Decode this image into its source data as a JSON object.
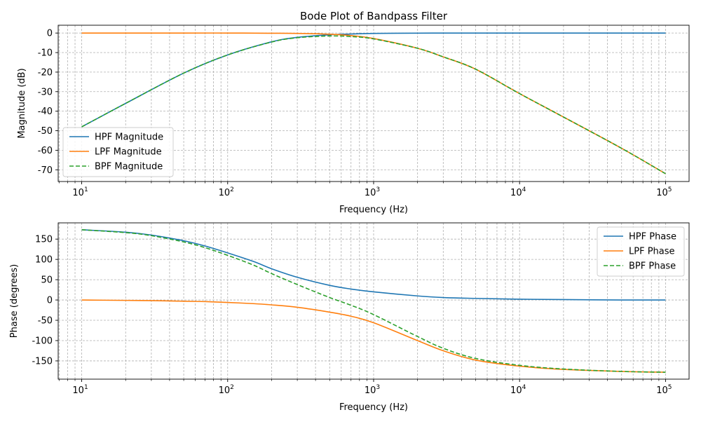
{
  "chart_data": [
    {
      "type": "line",
      "title": "Bode Plot of Bandpass Filter",
      "xlabel": "Frequency (Hz)",
      "ylabel": "Magnitude (dB)",
      "xscale": "log",
      "xlim": [
        6.9,
        145000
      ],
      "ylim": [
        -76,
        4
      ],
      "yticks": [
        0,
        -10,
        -20,
        -30,
        -40,
        -50,
        -60,
        -70
      ],
      "xticks": [
        10,
        100,
        1000,
        10000,
        100000
      ],
      "xtick_labels": [
        {
          "base": "10",
          "exp": "1"
        },
        {
          "base": "10",
          "exp": "2"
        },
        {
          "base": "10",
          "exp": "3"
        },
        {
          "base": "10",
          "exp": "4"
        },
        {
          "base": "10",
          "exp": "5"
        }
      ],
      "grid": true,
      "legend": "lower-left",
      "x": [
        10,
        20,
        50,
        100,
        200,
        300,
        500,
        700,
        1000,
        2000,
        3000,
        5000,
        10000,
        20000,
        50000,
        100000
      ],
      "series": [
        {
          "name": "HPF Magnitude",
          "color": "#1f77b4",
          "dash": "solid",
          "values": [
            -48,
            -36,
            -20.5,
            -11.2,
            -4.5,
            -2.2,
            -0.9,
            -0.5,
            -0.2,
            -0.05,
            0,
            0,
            0,
            0,
            0,
            0
          ]
        },
        {
          "name": "LPF Magnitude",
          "color": "#ff7f0e",
          "dash": "solid",
          "values": [
            0,
            0,
            0,
            0,
            -0.1,
            -0.2,
            -0.6,
            -1.3,
            -2.8,
            -7.8,
            -12.2,
            -18.5,
            -31,
            -43,
            -59,
            -72
          ]
        },
        {
          "name": "BPF Magnitude",
          "color": "#2ca02c",
          "dash": "dashed",
          "values": [
            -48,
            -36,
            -20.5,
            -11.2,
            -4.6,
            -2.4,
            -1.5,
            -1.8,
            -3.0,
            -7.8,
            -12.2,
            -18.5,
            -31,
            -43,
            -59,
            -72
          ]
        }
      ]
    },
    {
      "type": "line",
      "title": "",
      "xlabel": "Frequency (Hz)",
      "ylabel": "Phase (degrees)",
      "xscale": "log",
      "xlim": [
        6.9,
        145000
      ],
      "ylim": [
        -195,
        190
      ],
      "yticks": [
        150,
        100,
        50,
        0,
        -50,
        -100,
        -150
      ],
      "xticks": [
        10,
        100,
        1000,
        10000,
        100000
      ],
      "xtick_labels": [
        {
          "base": "10",
          "exp": "1"
        },
        {
          "base": "10",
          "exp": "2"
        },
        {
          "base": "10",
          "exp": "3"
        },
        {
          "base": "10",
          "exp": "4"
        },
        {
          "base": "10",
          "exp": "5"
        }
      ],
      "grid": true,
      "legend": "upper-right",
      "x": [
        10,
        20,
        30,
        50,
        70,
        100,
        150,
        200,
        300,
        500,
        700,
        1000,
        2000,
        3000,
        5000,
        10000,
        20000,
        50000,
        100000
      ],
      "series": [
        {
          "name": "HPF Phase",
          "color": "#1f77b4",
          "dash": "solid",
          "values": [
            173,
            167,
            160,
            146,
            133,
            116,
            95,
            77,
            56,
            36,
            27,
            20,
            10,
            6,
            4,
            2,
            1,
            0,
            0
          ]
        },
        {
          "name": "LPF Phase",
          "color": "#ff7f0e",
          "dash": "solid",
          "values": [
            0,
            -1,
            -1.5,
            -3,
            -4,
            -6,
            -9,
            -12,
            -18,
            -30,
            -40,
            -56,
            -100,
            -125,
            -148,
            -163,
            -171,
            -176,
            -178
          ]
        },
        {
          "name": "BPF Phase",
          "color": "#2ca02c",
          "dash": "dashed",
          "values": [
            173,
            166,
            158.5,
            143,
            129,
            110,
            86,
            65,
            38,
            6,
            -13,
            -36,
            -90,
            -119,
            -144,
            -161,
            -170,
            -176,
            -178
          ]
        }
      ]
    }
  ]
}
